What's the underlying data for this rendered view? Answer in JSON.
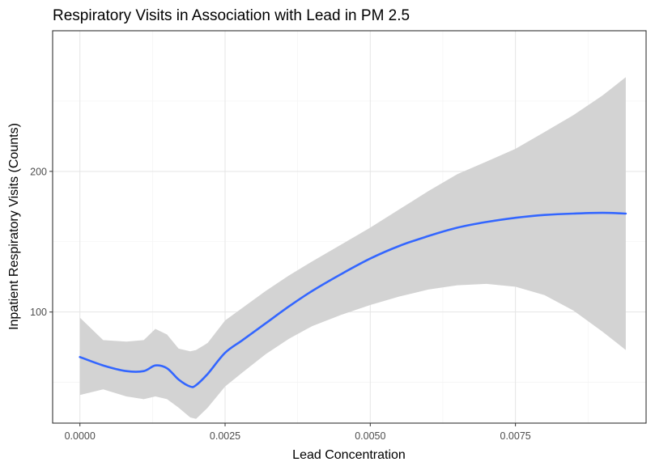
{
  "chart_data": {
    "type": "line",
    "title": "Respiratory Visits in Association with Lead in PM 2.5",
    "xlabel": "Lead Concentration",
    "ylabel": "Inpatient Respiratory Visits (Counts)",
    "x_ticks": [
      "0.0000",
      "0.0025",
      "0.0050",
      "0.0075"
    ],
    "y_ticks": [
      "100",
      "200"
    ],
    "xlim": [
      -0.00047,
      0.00975
    ],
    "ylim": [
      21,
      300
    ],
    "grid": true,
    "colors": {
      "line": "#3366ff",
      "ribbon": "#d3d3d3"
    },
    "series": [
      {
        "x": [
          0.0,
          0.0004,
          0.0008,
          0.0011,
          0.0013,
          0.0015,
          0.0017,
          0.0019,
          0.002,
          0.0022,
          0.0025,
          0.0028,
          0.0032,
          0.0036,
          0.004,
          0.0045,
          0.005,
          0.0055,
          0.006,
          0.0065,
          0.007,
          0.0075,
          0.008,
          0.0085,
          0.009,
          0.0094
        ],
        "y": [
          68,
          62,
          58,
          58,
          62,
          60,
          52,
          47,
          48,
          56,
          71,
          80,
          92,
          104,
          115,
          127,
          138,
          147,
          154,
          160,
          164,
          167,
          169,
          170,
          170.5,
          170
        ],
        "ymin": [
          41,
          45,
          40,
          38,
          40,
          38,
          32,
          25,
          24,
          32,
          47,
          57,
          70,
          81,
          90,
          98,
          105,
          111,
          116,
          119,
          120,
          118,
          112,
          101,
          86,
          73
        ],
        "ymax": [
          96,
          80,
          79,
          80,
          88,
          84,
          74,
          72,
          73,
          78,
          94,
          103,
          115,
          126,
          136,
          148,
          160,
          173,
          186,
          198,
          207,
          216,
          228,
          240,
          254,
          267
        ]
      }
    ]
  }
}
